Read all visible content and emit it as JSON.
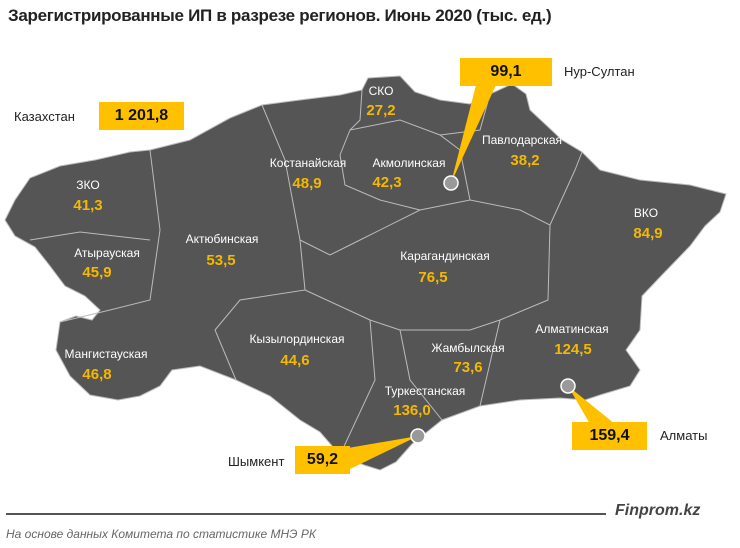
{
  "title": "Зарегистрированные ИП в разрезе регионов. Июнь 2020 (тыс. ед.)",
  "total": {
    "label": "Казахстан",
    "value": "1 201,8"
  },
  "regions": [
    {
      "name": "СКО",
      "value": "27,2"
    },
    {
      "name": "Павлодарская",
      "value": "38,2"
    },
    {
      "name": "Костанайская",
      "value": "48,9"
    },
    {
      "name": "Акмолинская",
      "value": "42,3"
    },
    {
      "name": "ЗКО",
      "value": "41,3"
    },
    {
      "name": "ВКО",
      "value": "84,9"
    },
    {
      "name": "Атырауская",
      "value": "45,9"
    },
    {
      "name": "Актюбинская",
      "value": "53,5"
    },
    {
      "name": "Карагандинская",
      "value": "76,5"
    },
    {
      "name": "Мангистауская",
      "value": "46,8"
    },
    {
      "name": "Кызылординская",
      "value": "44,6"
    },
    {
      "name": "Жамбылская",
      "value": "73,6"
    },
    {
      "name": "Алматинская",
      "value": "124,5"
    },
    {
      "name": "Туркестанская",
      "value": "136,0"
    }
  ],
  "cities": [
    {
      "name": "Нур-Султан",
      "value": "99,1"
    },
    {
      "name": "Алматы",
      "value": "159,4"
    },
    {
      "name": "Шымкент",
      "value": "59,2"
    }
  ],
  "colors": {
    "map": "#555555",
    "accent": "#ffc000",
    "value_text": "#f5b800"
  },
  "footer": {
    "brand": "Finprom.kz",
    "source": "На основе данных  Комитета по статистике МНЭ РК"
  }
}
